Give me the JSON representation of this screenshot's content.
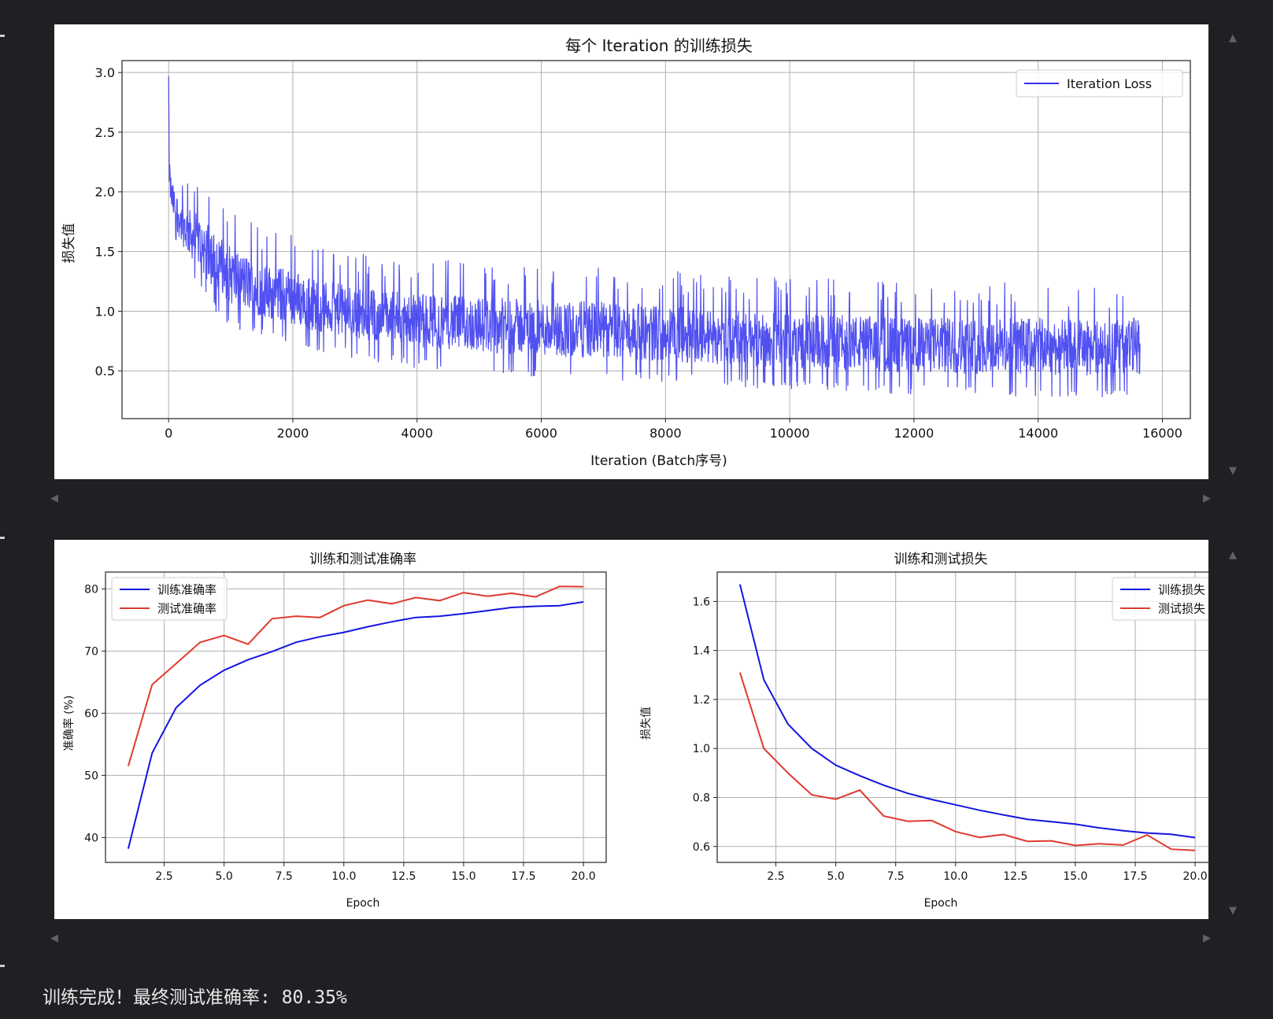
{
  "final_message": "训练完成！最终测试准确率: 80.35%",
  "chart_data": [
    {
      "type": "line",
      "title": "每个 Iteration 的训练损失",
      "xlabel": "Iteration (Batch序号)",
      "ylabel": "损失值",
      "xlim": [
        -750,
        16450
      ],
      "ylim": [
        0.1,
        3.1
      ],
      "xticks": [
        0,
        2000,
        4000,
        6000,
        8000,
        10000,
        12000,
        14000,
        16000
      ],
      "yticks": [
        0.5,
        1.0,
        1.5,
        2.0,
        2.5,
        3.0
      ],
      "xtick_labels": [
        "0",
        "2000",
        "4000",
        "6000",
        "8000",
        "10000",
        "12000",
        "14000",
        "16000"
      ],
      "ytick_labels": [
        "0.5",
        "1.0",
        "1.5",
        "2.0",
        "2.5",
        "3.0"
      ],
      "grid": true,
      "legend": "top-right",
      "series": [
        {
          "name": "Iteration Loss",
          "color": "#3333ee",
          "x": [
            0,
            20,
            50,
            100,
            200,
            300,
            500,
            700,
            1000,
            1500,
            2000,
            2500,
            3000,
            4000,
            5000,
            6000,
            7000,
            8000,
            9000,
            10000,
            11000,
            12000,
            13000,
            14000,
            15000,
            15640
          ],
          "upper": [
            2.97,
            2.3,
            2.15,
            2.1,
            2.0,
            1.95,
            1.9,
            1.8,
            1.65,
            1.5,
            1.45,
            1.35,
            1.3,
            1.25,
            1.22,
            1.2,
            1.18,
            1.15,
            1.1,
            1.08,
            1.07,
            1.05,
            1.05,
            1.05,
            1.02,
            1.06
          ],
          "lower": [
            2.0,
            1.85,
            1.75,
            1.65,
            1.5,
            1.4,
            1.25,
            1.1,
            0.95,
            0.85,
            0.78,
            0.72,
            0.68,
            0.6,
            0.56,
            0.52,
            0.5,
            0.48,
            0.45,
            0.42,
            0.4,
            0.38,
            0.37,
            0.36,
            0.36,
            0.37
          ]
        }
      ]
    },
    {
      "type": "line",
      "title": "训练和测试准确率",
      "xlabel": "Epoch",
      "ylabel": "准确率 (%)",
      "xlim": [
        0.05,
        20.95
      ],
      "ylim": [
        36.0,
        82.7
      ],
      "xticks": [
        2.5,
        5.0,
        7.5,
        10.0,
        12.5,
        15.0,
        17.5,
        20.0
      ],
      "yticks": [
        40,
        50,
        60,
        70,
        80
      ],
      "xtick_labels": [
        "2.5",
        "5.0",
        "7.5",
        "10.0",
        "12.5",
        "15.0",
        "17.5",
        "20.0"
      ],
      "ytick_labels": [
        "40",
        "50",
        "60",
        "70",
        "80"
      ],
      "grid": true,
      "legend": "top-left",
      "x": [
        1,
        2,
        3,
        4,
        5,
        6,
        7,
        8,
        9,
        10,
        11,
        12,
        13,
        14,
        15,
        16,
        17,
        18,
        19,
        20
      ],
      "series": [
        {
          "name": "训练准确率",
          "color": "#1515e0",
          "values": [
            38.2,
            53.6,
            60.9,
            64.5,
            66.9,
            68.6,
            69.9,
            71.4,
            72.3,
            73.0,
            73.9,
            74.7,
            75.4,
            75.6,
            76.0,
            76.5,
            77.0,
            77.2,
            77.3,
            77.9
          ]
        },
        {
          "name": "测试准确率",
          "color": "#e03a2f",
          "values": [
            51.5,
            64.6,
            68.0,
            71.4,
            72.5,
            71.1,
            75.2,
            75.6,
            75.4,
            77.3,
            78.2,
            77.6,
            78.6,
            78.1,
            79.4,
            78.8,
            79.3,
            78.7,
            80.4,
            80.35
          ]
        }
      ]
    },
    {
      "type": "line",
      "title": "训练和测试损失",
      "xlabel": "Epoch",
      "ylabel": "损失值",
      "xlim": [
        0.05,
        20.95
      ],
      "ylim": [
        0.535,
        1.72
      ],
      "xticks": [
        2.5,
        5.0,
        7.5,
        10.0,
        12.5,
        15.0,
        17.5,
        20.0
      ],
      "yticks": [
        0.6,
        0.8,
        1.0,
        1.2,
        1.4,
        1.6
      ],
      "xtick_labels": [
        "2.5",
        "5.0",
        "7.5",
        "10.0",
        "12.5",
        "15.0",
        "17.5",
        "20.0"
      ],
      "ytick_labels": [
        "0.6",
        "0.8",
        "1.0",
        "1.2",
        "1.4",
        "1.6"
      ],
      "grid": true,
      "legend": "top-right",
      "x": [
        1,
        2,
        3,
        4,
        5,
        6,
        7,
        8,
        9,
        10,
        11,
        12,
        13,
        14,
        15,
        16,
        17,
        18,
        19,
        20
      ],
      "series": [
        {
          "name": "训练损失",
          "color": "#1515e0",
          "values": [
            1.67,
            1.28,
            1.1,
            1.0,
            0.932,
            0.889,
            0.85,
            0.817,
            0.792,
            0.77,
            0.748,
            0.729,
            0.711,
            0.701,
            0.691,
            0.676,
            0.664,
            0.655,
            0.65,
            0.636
          ]
        },
        {
          "name": "测试损失",
          "color": "#e03a2f",
          "values": [
            1.31,
            1.0,
            0.9,
            0.811,
            0.793,
            0.83,
            0.724,
            0.703,
            0.706,
            0.661,
            0.637,
            0.649,
            0.621,
            0.623,
            0.604,
            0.611,
            0.606,
            0.647,
            0.589,
            0.584
          ]
        }
      ]
    }
  ]
}
